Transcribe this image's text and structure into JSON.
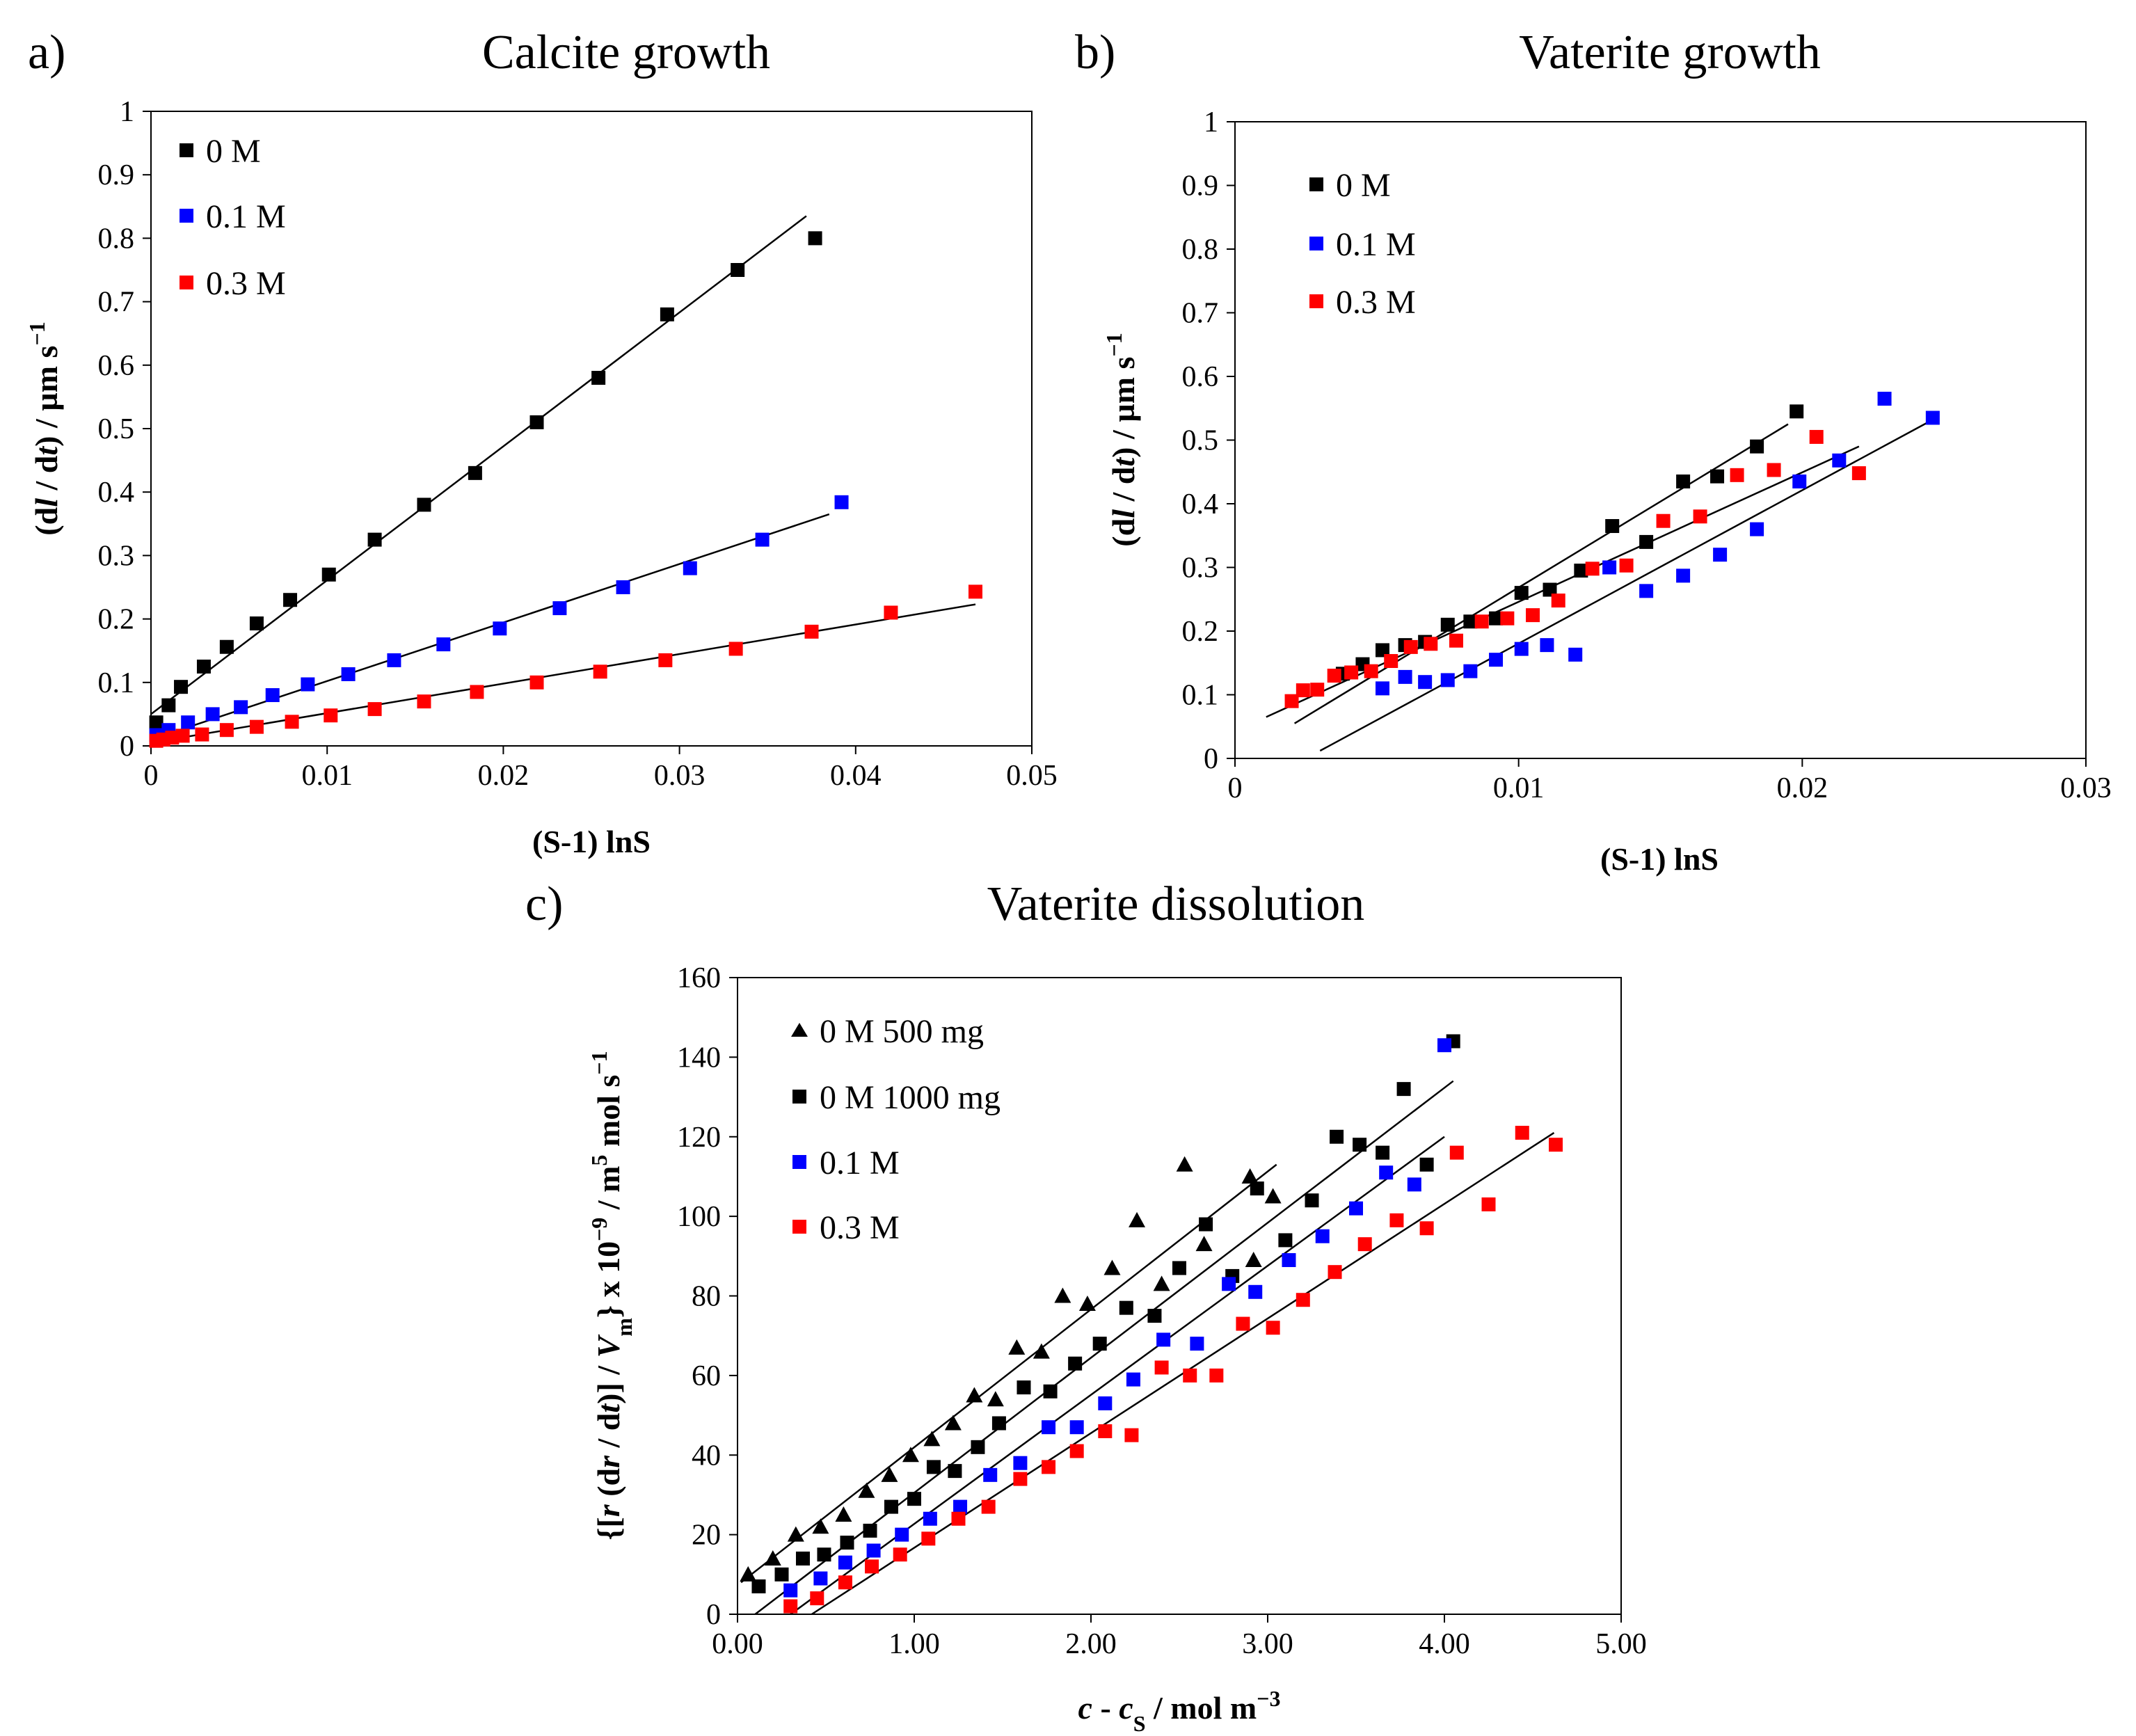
{
  "chart_data": [
    {
      "id": "a",
      "type": "scatter",
      "panel_label": "a)",
      "title": "Calcite growth",
      "xlabel": "(S-1) lnS",
      "ylabel": "(dl / dt) / µm s⁻¹",
      "xlim": [
        0,
        0.05
      ],
      "ylim": [
        0,
        1
      ],
      "x_ticks": [
        "0",
        "0.01",
        "0.02",
        "0.03",
        "0.04",
        "0.05"
      ],
      "y_ticks": [
        "0",
        "0.1",
        "0.2",
        "0.3",
        "0.4",
        "0.5",
        "0.6",
        "0.7",
        "0.8",
        "0.9",
        "1"
      ],
      "legend_position": "top-left",
      "series": [
        {
          "name": "0 M",
          "color": "#000000",
          "marker": "square",
          "points": [
            [
              0.0003,
              0.037
            ],
            [
              0.001,
              0.064
            ],
            [
              0.0017,
              0.093
            ],
            [
              0.003,
              0.125
            ],
            [
              0.0043,
              0.156
            ],
            [
              0.006,
              0.193
            ],
            [
              0.0079,
              0.23
            ],
            [
              0.0101,
              0.27
            ],
            [
              0.0127,
              0.325
            ],
            [
              0.0155,
              0.38
            ],
            [
              0.0184,
              0.43
            ],
            [
              0.0219,
              0.51
            ],
            [
              0.0254,
              0.58
            ],
            [
              0.0293,
              0.68
            ],
            [
              0.0333,
              0.75
            ],
            [
              0.0377,
              0.8
            ]
          ],
          "fit": [
            [
              0,
              0.05
            ],
            [
              0.0372,
              0.835
            ]
          ]
        },
        {
          "name": "0.1 M",
          "color": "#0000ff",
          "marker": "square",
          "points": [
            [
              0.0003,
              0.017
            ],
            [
              0.001,
              0.025
            ],
            [
              0.0021,
              0.037
            ],
            [
              0.0035,
              0.05
            ],
            [
              0.0051,
              0.061
            ],
            [
              0.0069,
              0.08
            ],
            [
              0.0089,
              0.097
            ],
            [
              0.0112,
              0.113
            ],
            [
              0.0138,
              0.135
            ],
            [
              0.0166,
              0.16
            ],
            [
              0.0198,
              0.185
            ],
            [
              0.0232,
              0.217
            ],
            [
              0.0268,
              0.25
            ],
            [
              0.0306,
              0.28
            ],
            [
              0.0347,
              0.325
            ],
            [
              0.0392,
              0.384
            ]
          ],
          "fit": [
            [
              0,
              0.01
            ],
            [
              0.0385,
              0.365
            ]
          ]
        },
        {
          "name": "0.3 M",
          "color": "#ff0000",
          "marker": "square",
          "points": [
            [
              0.0003,
              0.008
            ],
            [
              0.0007,
              0.01
            ],
            [
              0.0012,
              0.013
            ],
            [
              0.0018,
              0.016
            ],
            [
              0.0029,
              0.018
            ],
            [
              0.0043,
              0.025
            ],
            [
              0.006,
              0.03
            ],
            [
              0.008,
              0.038
            ],
            [
              0.0102,
              0.048
            ],
            [
              0.0127,
              0.058
            ],
            [
              0.0155,
              0.07
            ],
            [
              0.0185,
              0.085
            ],
            [
              0.0219,
              0.1
            ],
            [
              0.0255,
              0.117
            ],
            [
              0.0292,
              0.135
            ],
            [
              0.0332,
              0.153
            ],
            [
              0.0375,
              0.18
            ],
            [
              0.042,
              0.21
            ],
            [
              0.0468,
              0.243
            ]
          ],
          "fit": [
            [
              0,
              0.005
            ],
            [
              0.0468,
              0.223
            ]
          ]
        }
      ]
    },
    {
      "id": "b",
      "type": "scatter",
      "panel_label": "b)",
      "title": "Vaterite growth",
      "xlabel": "(S-1) lnS",
      "ylabel": "(dl / dt) / µm s⁻¹",
      "xlim": [
        0,
        0.03
      ],
      "ylim": [
        0,
        1
      ],
      "x_ticks": [
        "0",
        "0.01",
        "0.02",
        "0.03"
      ],
      "y_ticks": [
        "0",
        "0.1",
        "0.2",
        "0.3",
        "0.4",
        "0.5",
        "0.6",
        "0.7",
        "0.8",
        "0.9",
        "1"
      ],
      "legend_position": "top-left",
      "series": [
        {
          "name": "0 M",
          "color": "#000000",
          "marker": "square",
          "points": [
            [
              0.0038,
              0.133
            ],
            [
              0.0045,
              0.148
            ],
            [
              0.0052,
              0.17
            ],
            [
              0.006,
              0.178
            ],
            [
              0.0067,
              0.183
            ],
            [
              0.0075,
              0.21
            ],
            [
              0.0083,
              0.215
            ],
            [
              0.0092,
              0.22
            ],
            [
              0.0101,
              0.26
            ],
            [
              0.0111,
              0.265
            ],
            [
              0.0122,
              0.295
            ],
            [
              0.0133,
              0.365
            ],
            [
              0.0145,
              0.34
            ],
            [
              0.0158,
              0.435
            ],
            [
              0.017,
              0.443
            ],
            [
              0.0184,
              0.49
            ],
            [
              0.0198,
              0.545
            ]
          ],
          "fit": [
            [
              0.0021,
              0.055
            ],
            [
              0.0195,
              0.525
            ]
          ]
        },
        {
          "name": "0.1 M",
          "color": "#0000ff",
          "marker": "square",
          "points": [
            [
              0.0052,
              0.11
            ],
            [
              0.006,
              0.128
            ],
            [
              0.0067,
              0.12
            ],
            [
              0.0075,
              0.123
            ],
            [
              0.0083,
              0.137
            ],
            [
              0.0092,
              0.155
            ],
            [
              0.0101,
              0.172
            ],
            [
              0.011,
              0.178
            ],
            [
              0.012,
              0.163
            ],
            [
              0.0132,
              0.3
            ],
            [
              0.0145,
              0.263
            ],
            [
              0.0158,
              0.287
            ],
            [
              0.0171,
              0.32
            ],
            [
              0.0184,
              0.36
            ],
            [
              0.0199,
              0.435
            ],
            [
              0.0213,
              0.468
            ],
            [
              0.0229,
              0.565
            ],
            [
              0.0246,
              0.535
            ]
          ],
          "fit": [
            [
              0.003,
              0.012
            ],
            [
              0.0246,
              0.532
            ]
          ]
        },
        {
          "name": "0.3 M",
          "color": "#ff0000",
          "marker": "square",
          "points": [
            [
              0.002,
              0.09
            ],
            [
              0.0024,
              0.107
            ],
            [
              0.0029,
              0.108
            ],
            [
              0.0035,
              0.13
            ],
            [
              0.0041,
              0.135
            ],
            [
              0.0048,
              0.137
            ],
            [
              0.0055,
              0.153
            ],
            [
              0.0062,
              0.175
            ],
            [
              0.0069,
              0.18
            ],
            [
              0.0078,
              0.185
            ],
            [
              0.0087,
              0.215
            ],
            [
              0.0096,
              0.22
            ],
            [
              0.0105,
              0.225
            ],
            [
              0.0114,
              0.248
            ],
            [
              0.0126,
              0.298
            ],
            [
              0.0138,
              0.303
            ],
            [
              0.0151,
              0.373
            ],
            [
              0.0164,
              0.38
            ],
            [
              0.0177,
              0.445
            ],
            [
              0.019,
              0.453
            ],
            [
              0.0205,
              0.505
            ],
            [
              0.022,
              0.448
            ]
          ],
          "fit": [
            [
              0.0011,
              0.065
            ],
            [
              0.022,
              0.49
            ]
          ]
        }
      ]
    },
    {
      "id": "c",
      "type": "scatter",
      "panel_label": "c)",
      "title": "Vaterite dissolution",
      "xlabel": "c - cS / mol m⁻³",
      "ylabel": "{[r (dr / dt)] / Vm} x 10⁻⁹ / m⁵ mol s⁻¹",
      "xlim": [
        0,
        5
      ],
      "ylim": [
        0,
        160
      ],
      "x_ticks": [
        "0.00",
        "1.00",
        "2.00",
        "3.00",
        "4.00",
        "5.00"
      ],
      "y_ticks": [
        "0",
        "20",
        "40",
        "60",
        "80",
        "100",
        "120",
        "140",
        "160"
      ],
      "legend_position": "top-left",
      "series": [
        {
          "name": "0 M 500 mg",
          "color": "#000000",
          "marker": "triangle",
          "points": [
            [
              0.06,
              10
            ],
            [
              0.2,
              14
            ],
            [
              0.33,
              20
            ],
            [
              0.47,
              22
            ],
            [
              0.6,
              25
            ],
            [
              0.73,
              31
            ],
            [
              0.86,
              35
            ],
            [
              0.98,
              40
            ],
            [
              1.1,
              44
            ],
            [
              1.22,
              48
            ],
            [
              1.34,
              55
            ],
            [
              1.46,
              54
            ],
            [
              1.58,
              67
            ],
            [
              1.72,
              66
            ],
            [
              1.84,
              80
            ],
            [
              1.98,
              78
            ],
            [
              2.12,
              87
            ],
            [
              2.26,
              99
            ],
            [
              2.4,
              83
            ],
            [
              2.53,
              113
            ],
            [
              2.64,
              93
            ],
            [
              2.9,
              110
            ],
            [
              2.92,
              89
            ],
            [
              3.03,
              105
            ]
          ],
          "fit": [
            [
              0.02,
              8
            ],
            [
              3.05,
              113
            ]
          ]
        },
        {
          "name": "0 M 1000 mg",
          "color": "#000000",
          "marker": "square",
          "points": [
            [
              0.12,
              7
            ],
            [
              0.25,
              10
            ],
            [
              0.37,
              14
            ],
            [
              0.49,
              15
            ],
            [
              0.62,
              18
            ],
            [
              0.75,
              21
            ],
            [
              0.87,
              27
            ],
            [
              1.0,
              29
            ],
            [
              1.11,
              37
            ],
            [
              1.23,
              36
            ],
            [
              1.36,
              42
            ],
            [
              1.48,
              48
            ],
            [
              1.62,
              57
            ],
            [
              1.77,
              56
            ],
            [
              1.91,
              63
            ],
            [
              2.05,
              68
            ],
            [
              2.2,
              77
            ],
            [
              2.36,
              75
            ],
            [
              2.5,
              87
            ],
            [
              2.65,
              98
            ],
            [
              2.8,
              85
            ],
            [
              2.94,
              107
            ],
            [
              3.1,
              94
            ],
            [
              3.25,
              104
            ],
            [
              3.39,
              120
            ],
            [
              3.52,
              118
            ],
            [
              3.65,
              116
            ],
            [
              3.77,
              132
            ],
            [
              3.9,
              113
            ],
            [
              4.05,
              144
            ]
          ],
          "fit": [
            [
              0.1,
              0
            ],
            [
              4.05,
              134
            ]
          ]
        },
        {
          "name": "0.1 M",
          "color": "#0000ff",
          "marker": "square",
          "points": [
            [
              0.3,
              6
            ],
            [
              0.47,
              9
            ],
            [
              0.61,
              13
            ],
            [
              0.77,
              16
            ],
            [
              0.93,
              20
            ],
            [
              1.09,
              24
            ],
            [
              1.26,
              27
            ],
            [
              1.43,
              35
            ],
            [
              1.6,
              38
            ],
            [
              1.76,
              47
            ],
            [
              1.92,
              47
            ],
            [
              2.08,
              53
            ],
            [
              2.24,
              59
            ],
            [
              2.41,
              69
            ],
            [
              2.6,
              68
            ],
            [
              2.78,
              83
            ],
            [
              2.93,
              81
            ],
            [
              3.12,
              89
            ],
            [
              3.31,
              95
            ],
            [
              3.5,
              102
            ],
            [
              3.67,
              111
            ],
            [
              3.83,
              108
            ],
            [
              4.0,
              143
            ]
          ],
          "fit": [
            [
              0.3,
              0
            ],
            [
              4.0,
              120
            ]
          ]
        },
        {
          "name": "0.3 M",
          "color": "#ff0000",
          "marker": "square",
          "points": [
            [
              0.3,
              2
            ],
            [
              0.45,
              4
            ],
            [
              0.61,
              8
            ],
            [
              0.76,
              12
            ],
            [
              0.92,
              15
            ],
            [
              1.08,
              19
            ],
            [
              1.25,
              24
            ],
            [
              1.42,
              27
            ],
            [
              1.6,
              34
            ],
            [
              1.76,
              37
            ],
            [
              1.92,
              41
            ],
            [
              2.08,
              46
            ],
            [
              2.23,
              45
            ],
            [
              2.4,
              62
            ],
            [
              2.56,
              60
            ],
            [
              2.71,
              60
            ],
            [
              2.86,
              73
            ],
            [
              3.03,
              72
            ],
            [
              3.2,
              79
            ],
            [
              3.38,
              86
            ],
            [
              3.55,
              93
            ],
            [
              3.73,
              99
            ],
            [
              3.9,
              97
            ],
            [
              4.07,
              116
            ],
            [
              4.25,
              103
            ],
            [
              4.44,
              121
            ],
            [
              4.63,
              118
            ]
          ],
          "fit": [
            [
              0.42,
              0
            ],
            [
              4.62,
              121
            ]
          ]
        }
      ]
    }
  ]
}
